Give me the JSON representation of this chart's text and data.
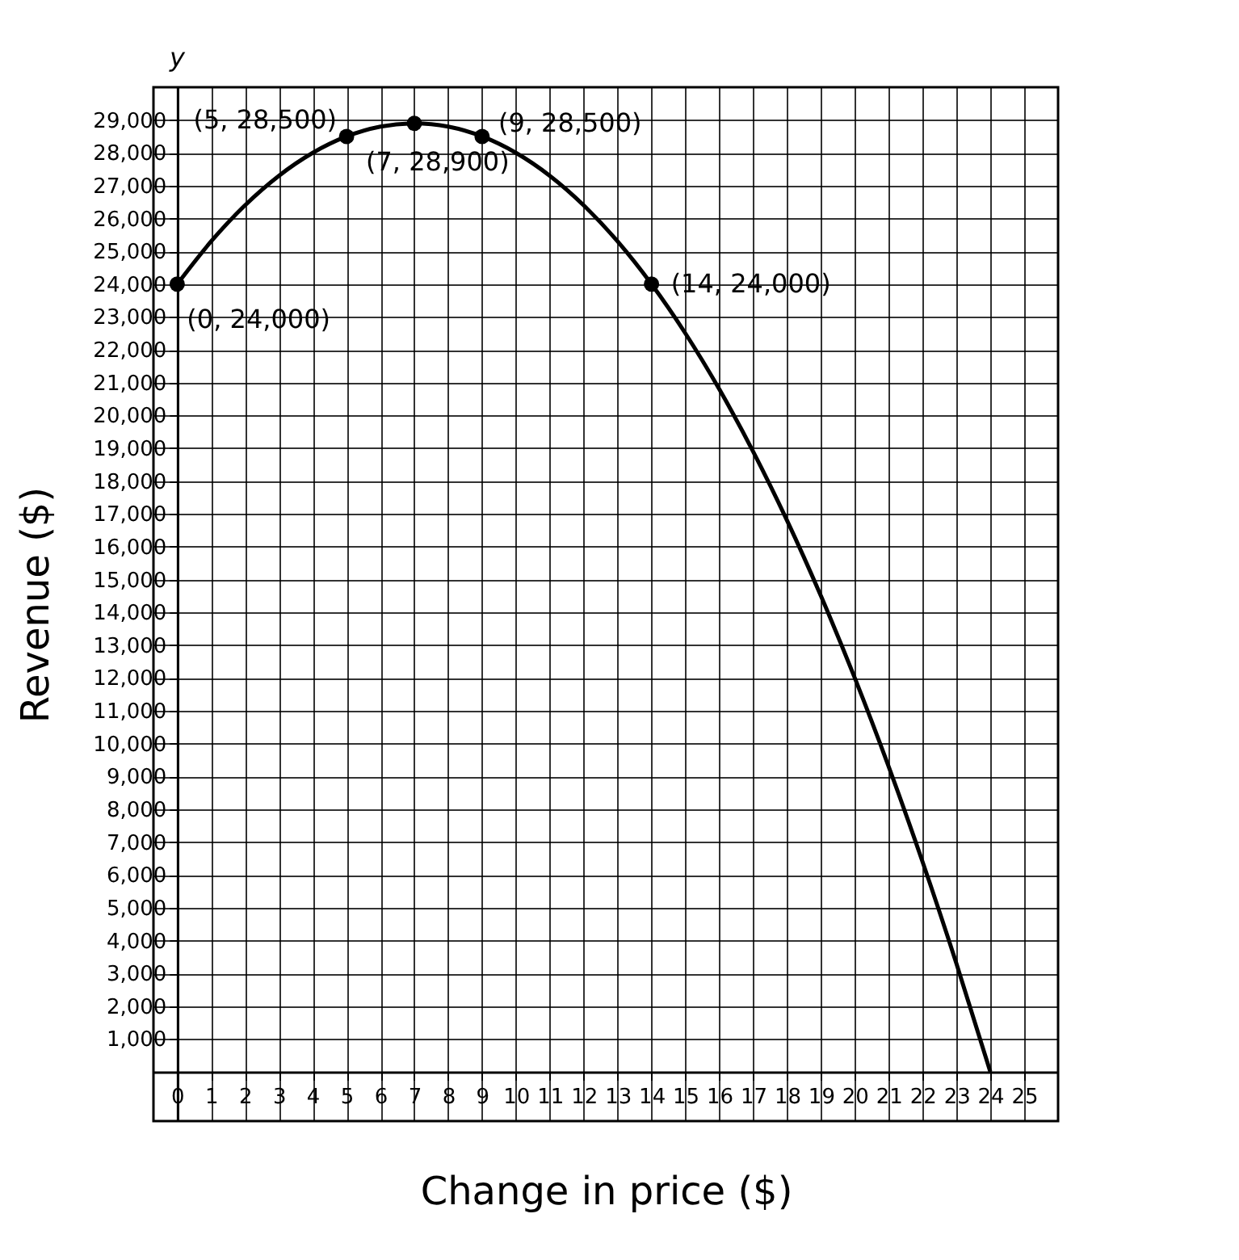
{
  "chart_data": {
    "type": "line",
    "xlabel": "Change in price ($)",
    "ylabel": "Revenue ($)",
    "x": [
      0,
      1,
      2,
      3,
      4,
      5,
      6,
      7,
      8,
      9,
      10,
      11,
      12,
      13,
      14,
      15,
      16,
      17,
      18,
      19,
      20,
      21,
      22,
      23,
      24
    ],
    "series": [
      {
        "type": "line",
        "color": "#000000",
        "marker": "none",
        "values": [
          24000,
          25300,
          26400,
          27300,
          28000,
          28500,
          28800,
          28900,
          28800,
          28500,
          28000,
          27300,
          26400,
          25300,
          24000,
          22500,
          20800,
          18900,
          16800,
          14500,
          12000,
          9300,
          6400,
          3300,
          0
        ]
      },
      {
        "type": "scatter",
        "color": "#000000",
        "marker": "circle",
        "x": [
          0,
          5,
          7,
          9,
          14
        ],
        "values": [
          24000,
          28500,
          28900,
          28500,
          24000
        ]
      }
    ],
    "xlim": [
      -0.7,
      26
    ],
    "ylim": [
      -1500,
      30000
    ],
    "xticks": [
      0,
      1,
      2,
      3,
      4,
      5,
      6,
      7,
      8,
      9,
      10,
      11,
      12,
      13,
      14,
      15,
      16,
      17,
      18,
      19,
      20,
      21,
      22,
      23,
      24,
      25
    ],
    "yticks": [
      {
        "value": 1000,
        "label": "1,000"
      },
      {
        "value": 2000,
        "label": "2,000"
      },
      {
        "value": 3000,
        "label": "3,000"
      },
      {
        "value": 4000,
        "label": "4,000"
      },
      {
        "value": 5000,
        "label": "5,000"
      },
      {
        "value": 6000,
        "label": "6,000"
      },
      {
        "value": 7000,
        "label": "7,000"
      },
      {
        "value": 8000,
        "label": "8,000"
      },
      {
        "value": 9000,
        "label": "9,000"
      },
      {
        "value": 10000,
        "label": "10,000"
      },
      {
        "value": 11000,
        "label": "11,000"
      },
      {
        "value": 12000,
        "label": "12,000"
      },
      {
        "value": 13000,
        "label": "13,000"
      },
      {
        "value": 14000,
        "label": "14,000"
      },
      {
        "value": 15000,
        "label": "15,000"
      },
      {
        "value": 16000,
        "label": "16,000"
      },
      {
        "value": 17000,
        "label": "17,000"
      },
      {
        "value": 18000,
        "label": "18,000"
      },
      {
        "value": 19000,
        "label": "19,000"
      },
      {
        "value": 20000,
        "label": "20,000"
      },
      {
        "value": 21000,
        "label": "21,000"
      },
      {
        "value": 22000,
        "label": "22,000"
      },
      {
        "value": 23000,
        "label": "23,000"
      },
      {
        "value": 24000,
        "label": "24,000"
      },
      {
        "value": 25000,
        "label": "25,000"
      },
      {
        "value": 26000,
        "label": "26,000"
      },
      {
        "value": 27000,
        "label": "27,000"
      },
      {
        "value": 28000,
        "label": "28,000"
      },
      {
        "value": 29000,
        "label": "29,000"
      }
    ],
    "grid": true,
    "annotations": [
      "y",
      {
        "text": "(0, 24,000)",
        "x": 0,
        "y": 24000
      },
      {
        "text": "(5, 28,500)",
        "x": 5,
        "y": 28500
      },
      {
        "text": "(7, 28,900)",
        "x": 7,
        "y": 28900
      },
      {
        "text": "(9, 28,500)",
        "x": 9,
        "y": 28500
      },
      {
        "text": "(14, 24,000)",
        "x": 14,
        "y": 24000
      }
    ]
  }
}
